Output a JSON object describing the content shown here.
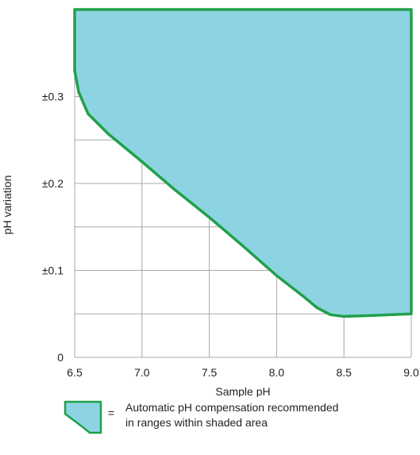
{
  "chart_data": {
    "type": "area",
    "title": "",
    "xlabel": "Sample pH",
    "ylabel": "pH variation",
    "x_ticks": [
      "6.5",
      "7.0",
      "7.5",
      "8.0",
      "8.5",
      "9.0"
    ],
    "y_ticks": [
      "0",
      "±0.1",
      "±0.2",
      "±0.3"
    ],
    "xlim": [
      6.5,
      9.0
    ],
    "ylim": [
      0,
      0.4
    ],
    "grid": true,
    "boundary": {
      "x": [
        6.5,
        6.53,
        6.6,
        6.75,
        7.0,
        7.25,
        7.5,
        7.75,
        8.0,
        8.2,
        8.3,
        8.4,
        8.5,
        8.7,
        9.0
      ],
      "y": [
        0.33,
        0.305,
        0.28,
        0.257,
        0.225,
        0.192,
        0.161,
        0.128,
        0.094,
        0.07,
        0.057,
        0.049,
        0.047,
        0.048,
        0.05
      ]
    },
    "fill_color": "#8dd4e3",
    "outline_color": "#20a04b",
    "grid_color": "#a7a9ac"
  },
  "legend": {
    "equals": "=",
    "line1": "Automatic pH compensation recommended",
    "line2": "in ranges within shaded area"
  }
}
